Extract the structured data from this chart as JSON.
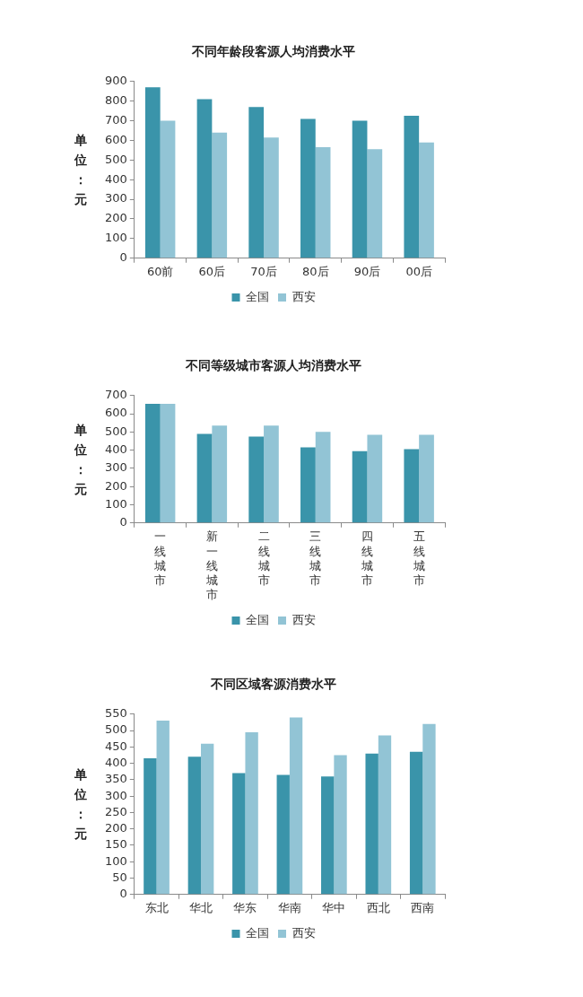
{
  "chart_data": [
    {
      "type": "bar",
      "title": "不同年龄段客源人均消费水平",
      "ylabel": "单位：元",
      "categories": [
        "60前",
        "60后",
        "70后",
        "80后",
        "90后",
        "00后"
      ],
      "series": [
        {
          "name": "全国",
          "color": "#3a94aa",
          "values": [
            870,
            810,
            770,
            710,
            700,
            725
          ]
        },
        {
          "name": "西安",
          "color": "#92c4d5",
          "values": [
            700,
            640,
            615,
            565,
            555,
            590
          ]
        }
      ],
      "ylim": [
        0,
        900
      ],
      "yticks": [
        0,
        100,
        200,
        300,
        400,
        500,
        600,
        700,
        800,
        900
      ],
      "legend": "bottom"
    },
    {
      "type": "bar",
      "title": "不同等级城市客源人均消费水平",
      "ylabel": "单位：元",
      "categories": [
        "一线城市",
        "新一线城市",
        "二线城市",
        "三线城市",
        "四线城市",
        "五线城市"
      ],
      "series": [
        {
          "name": "全国",
          "color": "#3a94aa",
          "values": [
            655,
            490,
            475,
            415,
            395,
            405
          ]
        },
        {
          "name": "西安",
          "color": "#92c4d5",
          "values": [
            655,
            535,
            535,
            500,
            485,
            485
          ]
        }
      ],
      "ylim": [
        0,
        700
      ],
      "yticks": [
        0,
        100,
        200,
        300,
        400,
        500,
        600,
        700
      ],
      "legend": "bottom"
    },
    {
      "type": "bar",
      "title": "不同区域客源消费水平",
      "ylabel": "单位：元",
      "categories": [
        "东北",
        "华北",
        "华东",
        "华南",
        "华中",
        "西北",
        "西南"
      ],
      "series": [
        {
          "name": "全国",
          "color": "#3a94aa",
          "values": [
            415,
            420,
            370,
            365,
            360,
            430,
            435
          ]
        },
        {
          "name": "西安",
          "color": "#92c4d5",
          "values": [
            530,
            460,
            495,
            540,
            425,
            485,
            520
          ]
        }
      ],
      "ylim": [
        0,
        550
      ],
      "yticks": [
        0,
        50,
        100,
        150,
        200,
        250,
        300,
        350,
        400,
        450,
        500,
        550
      ],
      "legend": "bottom"
    }
  ]
}
